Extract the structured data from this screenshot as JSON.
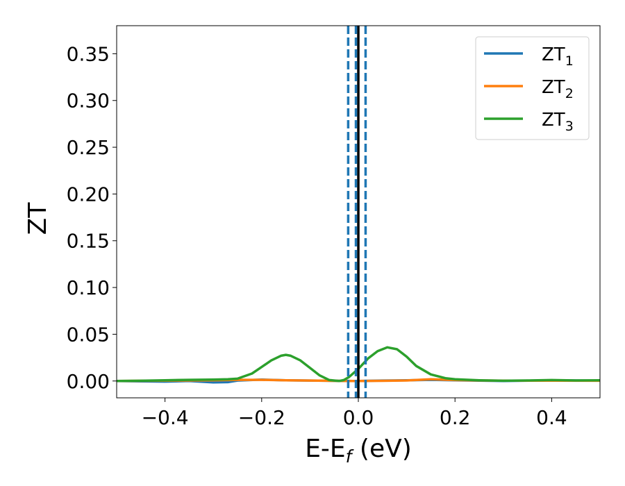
{
  "chart_data": {
    "type": "line",
    "xlabel": "E-E",
    "xlabel_sub": "f",
    "xlabel_unit": " (eV)",
    "ylabel": "ZT",
    "xlim": [
      -0.5,
      0.5
    ],
    "ylim": [
      -0.018,
      0.38
    ],
    "xticks": [
      -0.4,
      -0.2,
      0.0,
      0.2,
      0.4
    ],
    "xtick_labels": [
      "−0.4",
      "−0.2",
      "0.0",
      "0.2",
      "0.4"
    ],
    "yticks": [
      0.0,
      0.05,
      0.1,
      0.15,
      0.2,
      0.25,
      0.3,
      0.35
    ],
    "ytick_labels": [
      "0.00",
      "0.05",
      "0.10",
      "0.15",
      "0.20",
      "0.25",
      "0.30",
      "0.35"
    ],
    "legend_position": "top-right",
    "grid": false,
    "series": [
      {
        "name": "ZT",
        "subscript": "1",
        "color": "#1f77b4",
        "x": [
          -0.5,
          -0.45,
          -0.4,
          -0.35,
          -0.3,
          -0.27,
          -0.25,
          -0.2,
          -0.15,
          -0.1,
          -0.05,
          -0.03,
          0.0,
          0.05,
          0.1,
          0.15,
          0.2,
          0.3,
          0.4,
          0.5
        ],
        "y": [
          0.0,
          -0.0003,
          -0.0006,
          0.0,
          -0.0015,
          -0.0012,
          0.0005,
          0.0015,
          0.0008,
          0.0005,
          0.0002,
          0.0001,
          0.0,
          0.0005,
          0.0008,
          0.0012,
          0.0008,
          0.0,
          0.0008,
          0.0004
        ]
      },
      {
        "name": "ZT",
        "subscript": "2",
        "color": "#ff7f0e",
        "x": [
          -0.5,
          -0.4,
          -0.3,
          -0.25,
          -0.2,
          -0.15,
          -0.1,
          -0.05,
          0.0,
          0.05,
          0.1,
          0.15,
          0.2,
          0.25,
          0.3,
          0.4,
          0.5
        ],
        "y": [
          0.0,
          0.0004,
          0.0008,
          0.0012,
          0.0012,
          0.0008,
          0.0005,
          0.0002,
          0.0,
          0.0002,
          0.0006,
          0.0018,
          0.001,
          0.0006,
          0.0004,
          0.0004,
          0.0003
        ]
      },
      {
        "name": "ZT",
        "subscript": "3",
        "color": "#2ca02c",
        "x": [
          -0.5,
          -0.45,
          -0.4,
          -0.35,
          -0.3,
          -0.27,
          -0.25,
          -0.22,
          -0.2,
          -0.18,
          -0.16,
          -0.15,
          -0.14,
          -0.12,
          -0.1,
          -0.08,
          -0.06,
          -0.04,
          -0.03,
          -0.02,
          0.0,
          0.02,
          0.04,
          0.06,
          0.08,
          0.1,
          0.12,
          0.15,
          0.18,
          0.2,
          0.25,
          0.3,
          0.35,
          0.4,
          0.45,
          0.5
        ],
        "y": [
          0.0,
          0.0003,
          0.0008,
          0.0012,
          0.0015,
          0.0018,
          0.0025,
          0.008,
          0.015,
          0.022,
          0.027,
          0.028,
          0.027,
          0.022,
          0.014,
          0.006,
          0.001,
          0.0,
          0.001,
          0.004,
          0.013,
          0.024,
          0.032,
          0.036,
          0.034,
          0.026,
          0.016,
          0.007,
          0.003,
          0.0018,
          0.0008,
          0.0003,
          0.0006,
          0.001,
          0.0006,
          0.0008
        ]
      }
    ],
    "vlines": [
      {
        "x": 0.0,
        "style": "solid",
        "color": "#000000"
      },
      {
        "x": -0.021,
        "style": "dashed",
        "color": "#1f77b4"
      },
      {
        "x": -0.005,
        "style": "dashed",
        "color": "#1f77b4"
      },
      {
        "x": 0.015,
        "style": "dashed",
        "color": "#1f77b4"
      }
    ]
  }
}
